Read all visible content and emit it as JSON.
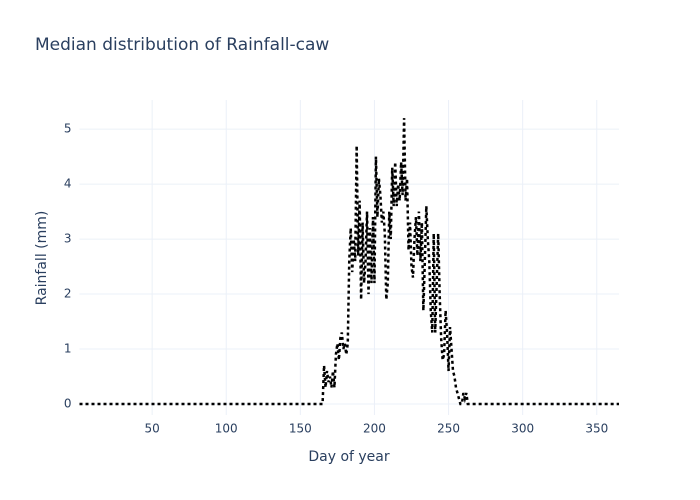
{
  "chart_data": {
    "type": "line",
    "title": "Median distribution of Rainfall-caw",
    "x_label": "Day of year",
    "y_label": "Rainfall (mm)",
    "x": [
      1,
      165,
      166,
      167,
      168,
      169,
      170,
      171,
      172,
      173,
      174,
      175,
      176,
      177,
      178,
      179,
      180,
      181,
      182,
      183,
      184,
      185,
      186,
      187,
      188,
      189,
      190,
      191,
      192,
      193,
      194,
      195,
      196,
      197,
      198,
      199,
      200,
      201,
      202,
      203,
      204,
      205,
      206,
      207,
      208,
      209,
      210,
      211,
      212,
      213,
      214,
      215,
      216,
      217,
      218,
      219,
      220,
      221,
      222,
      223,
      224,
      225,
      226,
      227,
      228,
      229,
      230,
      231,
      232,
      233,
      234,
      235,
      236,
      237,
      238,
      239,
      240,
      241,
      242,
      243,
      244,
      245,
      246,
      247,
      248,
      249,
      250,
      251,
      252,
      253,
      254,
      255,
      256,
      257,
      258,
      259,
      260,
      261,
      262,
      263,
      264,
      365
    ],
    "series": [
      {
        "name": "Rainfall-caw",
        "color": "#000000",
        "values": [
          0,
          0,
          0.7,
          0.3,
          0.6,
          0.4,
          0.5,
          0.3,
          0.6,
          0.3,
          0.9,
          1.1,
          0.8,
          1.2,
          1.3,
          1.0,
          1.1,
          0.9,
          1.1,
          2.6,
          3.2,
          2.4,
          3.0,
          2.6,
          4.7,
          2.7,
          3.7,
          1.9,
          3.3,
          2.2,
          2.6,
          3.5,
          2.0,
          3.2,
          2.2,
          3.4,
          2.2,
          4.5,
          3.4,
          4.1,
          3.8,
          3.3,
          3.5,
          3.1,
          1.9,
          2.2,
          3.5,
          3.0,
          4.3,
          3.6,
          4.4,
          3.6,
          4.0,
          3.7,
          4.4,
          3.8,
          5.2,
          3.7,
          4.1,
          2.8,
          3.3,
          2.5,
          2.3,
          3.0,
          3.4,
          2.7,
          3.5,
          2.6,
          3.3,
          1.7,
          2.6,
          3.6,
          3.0,
          2.6,
          1.7,
          1.3,
          3.1,
          1.3,
          2.2,
          3.1,
          2.0,
          1.2,
          0.8,
          0.9,
          1.7,
          1.3,
          0.6,
          1.4,
          1.0,
          0.6,
          0.5,
          0.3,
          0.2,
          0.1,
          0.0,
          0.0,
          0.2,
          0.1,
          0.2,
          0.0,
          0.0,
          0
        ]
      }
    ],
    "xlim": [
      1,
      365
    ],
    "ylim": [
      -0.2,
      5.53
    ],
    "xticks": [
      50,
      100,
      150,
      200,
      250,
      300,
      350
    ],
    "yticks": [
      0,
      1,
      2,
      3,
      4,
      5
    ],
    "grid": true
  }
}
